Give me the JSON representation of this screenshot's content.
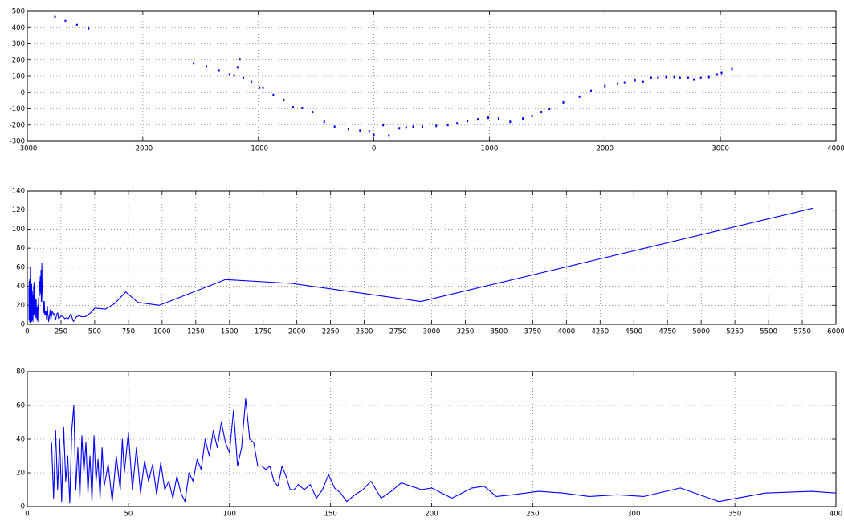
{
  "chart_data": [
    {
      "type": "scatter",
      "color": "#0000ff",
      "grid": true,
      "xlim": [
        -3000,
        4000
      ],
      "ylim": [
        -300,
        500
      ],
      "xticks": [
        -3000,
        -2000,
        -1000,
        0,
        1000,
        2000,
        3000,
        4000
      ],
      "yticks": [
        -300,
        -200,
        -100,
        0,
        100,
        200,
        300,
        400,
        500
      ],
      "x": [
        -2760,
        -2670,
        -2570,
        -2470,
        -1560,
        -1450,
        -1340,
        -1250,
        -1210,
        -1180,
        -1160,
        -1130,
        -1060,
        -990,
        -960,
        -870,
        -780,
        -700,
        -620,
        -530,
        -430,
        -340,
        -220,
        -120,
        -40,
        0,
        80,
        130,
        220,
        280,
        340,
        420,
        540,
        640,
        720,
        810,
        900,
        990,
        1080,
        1180,
        1290,
        1370,
        1450,
        1520,
        1640,
        1780,
        1880,
        2000,
        2110,
        2170,
        2260,
        2330,
        2400,
        2460,
        2530,
        2600,
        2650,
        2720,
        2770,
        2830,
        2900,
        2970,
        3010,
        3100
      ],
      "values": [
        465,
        440,
        415,
        395,
        180,
        160,
        135,
        110,
        105,
        155,
        205,
        90,
        65,
        30,
        30,
        -15,
        -45,
        -90,
        -95,
        -120,
        -180,
        -210,
        -225,
        -235,
        -240,
        -260,
        -200,
        -265,
        -220,
        -215,
        -210,
        -210,
        -205,
        -200,
        -190,
        -175,
        -165,
        -155,
        -160,
        -180,
        -160,
        -145,
        -120,
        -100,
        -60,
        -25,
        10,
        40,
        55,
        60,
        75,
        65,
        90,
        90,
        95,
        95,
        90,
        90,
        80,
        90,
        95,
        110,
        120,
        145
      ]
    },
    {
      "type": "line",
      "color": "#0000ff",
      "grid": true,
      "xlim": [
        0,
        6000
      ],
      "ylim": [
        0,
        140
      ],
      "xticks": [
        0,
        250,
        500,
        750,
        1000,
        1250,
        1500,
        1750,
        2000,
        2250,
        2500,
        2750,
        3000,
        3250,
        3500,
        3750,
        4000,
        4250,
        4500,
        4750,
        5000,
        5250,
        5500,
        5750,
        6000
      ],
      "yticks": [
        0,
        20,
        40,
        60,
        80,
        100,
        120,
        140
      ],
      "x": [
        12,
        13,
        14,
        15,
        16,
        17,
        18,
        19,
        20,
        21,
        22,
        23,
        24,
        25,
        26,
        27,
        28,
        29,
        30,
        31,
        32,
        33,
        34,
        35,
        36,
        37,
        38,
        40,
        42,
        44,
        46,
        47,
        48,
        50,
        52,
        54,
        56,
        58,
        60,
        62,
        64,
        66,
        68,
        70,
        72,
        74,
        76,
        78,
        80,
        82,
        84,
        86,
        88,
        90,
        92,
        94,
        96,
        98,
        100,
        102,
        104,
        106,
        108,
        110,
        112,
        114,
        116,
        118,
        120,
        122,
        124,
        126,
        128,
        130,
        132,
        134,
        137,
        140,
        143,
        146,
        149,
        152,
        155,
        158,
        162,
        166,
        170,
        175,
        180,
        185,
        190,
        195,
        200,
        205,
        210,
        215,
        220,
        226,
        232,
        240,
        253,
        265,
        278,
        292,
        305,
        323,
        342,
        365,
        388,
        400,
        430,
        470,
        500,
        580,
        650,
        730,
        820,
        980,
        1470,
        1960,
        2920,
        5830
      ],
      "values": [
        38,
        5,
        45,
        10,
        40,
        3,
        47,
        15,
        30,
        2,
        45,
        60,
        10,
        35,
        5,
        42,
        20,
        38,
        8,
        30,
        3,
        42,
        15,
        28,
        5,
        35,
        12,
        25,
        3,
        30,
        10,
        40,
        20,
        44,
        10,
        35,
        8,
        27,
        15,
        25,
        7,
        26,
        10,
        15,
        5,
        18,
        8,
        3,
        20,
        15,
        28,
        22,
        40,
        30,
        45,
        35,
        50,
        38,
        32,
        57,
        24,
        35,
        64,
        40,
        38,
        24,
        24,
        22,
        24,
        15,
        12,
        24,
        18,
        10,
        10,
        13,
        10,
        13,
        5,
        10,
        19,
        11,
        8,
        3,
        7,
        10,
        15,
        5,
        9,
        14,
        12,
        10,
        11,
        8,
        5,
        8,
        11,
        12,
        6,
        7,
        9,
        8,
        6,
        7,
        6,
        11,
        3,
        8,
        9,
        8,
        8,
        12,
        17,
        16,
        22,
        34,
        23,
        20,
        47,
        43,
        24,
        122
      ]
    },
    {
      "type": "line",
      "color": "#0000ff",
      "grid": true,
      "xlim": [
        0,
        400
      ],
      "ylim": [
        0,
        80
      ],
      "xticks": [
        0,
        50,
        100,
        150,
        200,
        250,
        300,
        350,
        400
      ],
      "yticks": [
        0,
        20,
        40,
        60,
        80
      ],
      "x": [
        12,
        13,
        14,
        15,
        16,
        17,
        18,
        19,
        20,
        21,
        22,
        23,
        24,
        25,
        26,
        27,
        28,
        29,
        30,
        31,
        32,
        33,
        34,
        35,
        36,
        37,
        38,
        40,
        42,
        44,
        46,
        47,
        48,
        50,
        52,
        54,
        56,
        58,
        60,
        62,
        64,
        66,
        68,
        70,
        72,
        74,
        76,
        78,
        80,
        82,
        84,
        86,
        88,
        90,
        92,
        94,
        96,
        98,
        100,
        102,
        104,
        106,
        108,
        110,
        112,
        114,
        116,
        118,
        120,
        122,
        124,
        126,
        128,
        130,
        132,
        134,
        137,
        140,
        143,
        146,
        149,
        152,
        155,
        158,
        162,
        166,
        170,
        175,
        180,
        185,
        190,
        195,
        200,
        205,
        210,
        215,
        220,
        226,
        232,
        240,
        253,
        265,
        278,
        292,
        305,
        323,
        342,
        365,
        388,
        400
      ],
      "values": [
        38,
        5,
        45,
        10,
        40,
        3,
        47,
        15,
        30,
        2,
        45,
        60,
        10,
        35,
        5,
        42,
        20,
        38,
        8,
        30,
        3,
        42,
        15,
        28,
        5,
        35,
        12,
        25,
        3,
        30,
        10,
        40,
        20,
        44,
        10,
        35,
        8,
        27,
        15,
        25,
        7,
        26,
        10,
        15,
        5,
        18,
        8,
        3,
        20,
        15,
        28,
        22,
        40,
        30,
        45,
        35,
        50,
        38,
        32,
        57,
        24,
        35,
        64,
        40,
        38,
        24,
        24,
        22,
        24,
        15,
        12,
        24,
        18,
        10,
        10,
        13,
        10,
        13,
        5,
        10,
        19,
        11,
        8,
        3,
        7,
        10,
        15,
        5,
        9,
        14,
        12,
        10,
        11,
        8,
        5,
        8,
        11,
        12,
        6,
        7,
        9,
        8,
        6,
        7,
        6,
        11,
        3,
        8,
        9,
        8
      ]
    }
  ]
}
